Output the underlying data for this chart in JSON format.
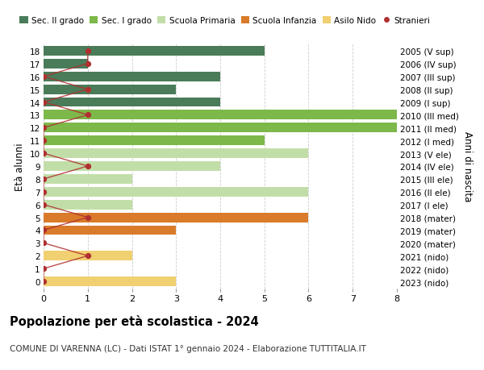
{
  "ages": [
    18,
    17,
    16,
    15,
    14,
    13,
    12,
    11,
    10,
    9,
    8,
    7,
    6,
    5,
    4,
    3,
    2,
    1,
    0
  ],
  "years": [
    "2005 (V sup)",
    "2006 (IV sup)",
    "2007 (III sup)",
    "2008 (II sup)",
    "2009 (I sup)",
    "2010 (III med)",
    "2011 (II med)",
    "2012 (I med)",
    "2013 (V ele)",
    "2014 (IV ele)",
    "2015 (III ele)",
    "2016 (II ele)",
    "2017 (I ele)",
    "2018 (mater)",
    "2019 (mater)",
    "2020 (mater)",
    "2021 (nido)",
    "2022 (nido)",
    "2023 (nido)"
  ],
  "bar_values": [
    5,
    1,
    4,
    3,
    4,
    8,
    8,
    5,
    6,
    4,
    2,
    6,
    2,
    6,
    3,
    0,
    2,
    0,
    3
  ],
  "bar_colors": [
    "#4a7c59",
    "#4a7c59",
    "#4a7c59",
    "#4a7c59",
    "#4a7c59",
    "#7db84a",
    "#7db84a",
    "#7db84a",
    "#c2dea8",
    "#c2dea8",
    "#c2dea8",
    "#c2dea8",
    "#c2dea8",
    "#d97b2a",
    "#d97b2a",
    "#d97b2a",
    "#f0d070",
    "#f0d070",
    "#f0d070"
  ],
  "stranieri_values": [
    1,
    1,
    0,
    1,
    0,
    1,
    0,
    0,
    0,
    1,
    0,
    0,
    0,
    1,
    0,
    0,
    1,
    0,
    0
  ],
  "stranieri_color": "#b03030",
  "legend_labels": [
    "Sec. II grado",
    "Sec. I grado",
    "Scuola Primaria",
    "Scuola Infanzia",
    "Asilo Nido",
    "Stranieri"
  ],
  "legend_colors": [
    "#4a7c59",
    "#7db84a",
    "#c2dea8",
    "#d97b2a",
    "#f0d070",
    "#b03030"
  ],
  "ylabel_label": "Età alunni",
  "right_ylabel": "Anni di nascita",
  "xlim": [
    0,
    8
  ],
  "ylim_min": -0.55,
  "ylim_max": 18.55,
  "title": "Popolazione per età scolastica - 2024",
  "subtitle": "COMUNE DI VARENNA (LC) - Dati ISTAT 1° gennaio 2024 - Elaborazione TUTTITALIA.IT",
  "background_color": "#ffffff",
  "grid_color": "#cccccc",
  "bar_height": 0.75
}
